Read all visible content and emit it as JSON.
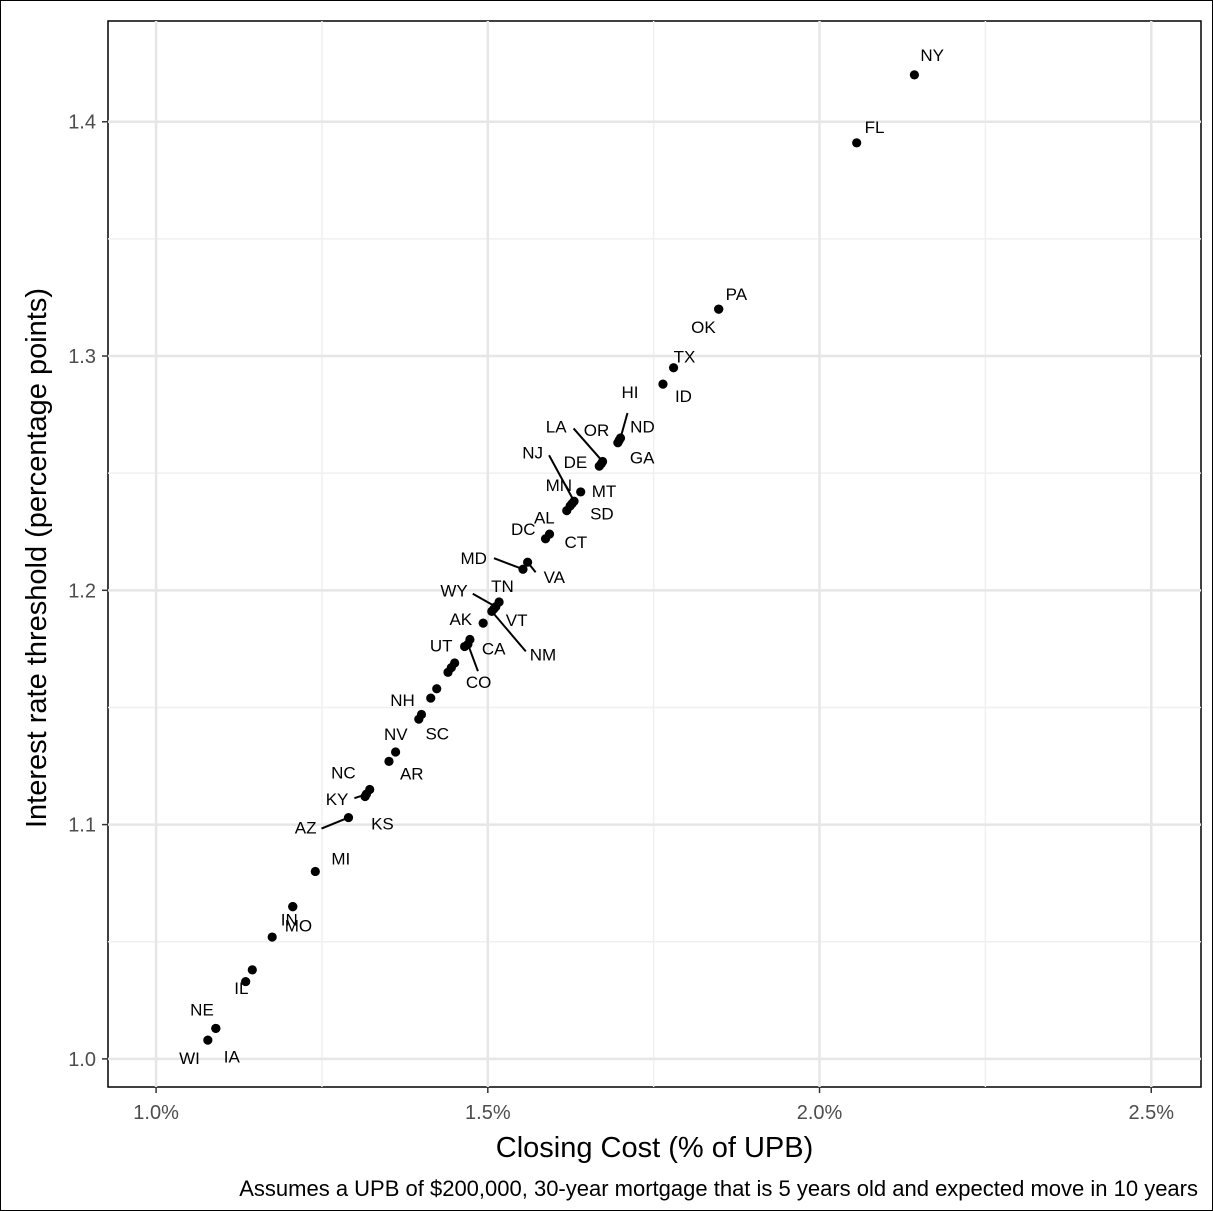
{
  "chart_data": {
    "type": "scatter",
    "title": "",
    "xlabel": "Closing Cost (% of UPB)",
    "ylabel": "Interest rate threshold (percentage points)",
    "caption": "Assumes a UPB of $200,000, 30-year mortgage that is 5 years old and expected move in 10 years",
    "xlim": [
      0.9275,
      2.575
    ],
    "ylim": [
      0.988,
      1.443
    ],
    "x_ticks": [
      1.0,
      1.5,
      2.0,
      2.5
    ],
    "x_tick_labels": [
      "1.0%",
      "1.5%",
      "2.0%",
      "2.5%"
    ],
    "y_ticks": [
      1.0,
      1.1,
      1.2,
      1.3,
      1.4
    ],
    "y_tick_labels": [
      "1.0",
      "1.1",
      "1.2",
      "1.3",
      "1.4"
    ],
    "grid": true,
    "legend": "none",
    "point_color": "#000000",
    "points": [
      {
        "label": "NY",
        "x": 2.143,
        "y": 1.42
      },
      {
        "label": "FL",
        "x": 2.056,
        "y": 1.391
      },
      {
        "label": "PA",
        "x": 1.848,
        "y": 1.32
      },
      {
        "label": "OK",
        "x": 1.848,
        "y": 1.32
      },
      {
        "label": "TX",
        "x": 1.78,
        "y": 1.295
      },
      {
        "label": "ID",
        "x": 1.764,
        "y": 1.288
      },
      {
        "label": "HI",
        "x": 1.7,
        "y": 1.265
      },
      {
        "label": "ND",
        "x": 1.698,
        "y": 1.264
      },
      {
        "label": "GA",
        "x": 1.696,
        "y": 1.263
      },
      {
        "label": "LA",
        "x": 1.673,
        "y": 1.255
      },
      {
        "label": "OR",
        "x": 1.671,
        "y": 1.254
      },
      {
        "label": "DE",
        "x": 1.668,
        "y": 1.253
      },
      {
        "label": "MT",
        "x": 1.64,
        "y": 1.242
      },
      {
        "label": "NJ",
        "x": 1.63,
        "y": 1.238
      },
      {
        "label": "MN",
        "x": 1.624,
        "y": 1.236
      },
      {
        "label": "SD",
        "x": 1.627,
        "y": 1.237
      },
      {
        "label": "AL",
        "x": 1.619,
        "y": 1.234
      },
      {
        "label": "CT",
        "x": 1.593,
        "y": 1.224
      },
      {
        "label": "DC",
        "x": 1.587,
        "y": 1.222
      },
      {
        "label": "VA",
        "x": 1.56,
        "y": 1.212
      },
      {
        "label": "MD",
        "x": 1.553,
        "y": 1.209
      },
      {
        "label": "TN",
        "x": 1.517,
        "y": 1.195
      },
      {
        "label": "WY",
        "x": 1.512,
        "y": 1.193
      },
      {
        "label": "VT",
        "x": 1.509,
        "y": 1.192
      },
      {
        "label": "NM",
        "x": 1.506,
        "y": 1.191
      },
      {
        "label": "AK",
        "x": 1.493,
        "y": 1.186
      },
      {
        "label": "CA",
        "x": 1.473,
        "y": 1.179
      },
      {
        "label": "UT",
        "x": 1.465,
        "y": 1.176
      },
      {
        "label": "CO",
        "x": 1.47,
        "y": 1.177
      },
      {
        "label": "",
        "x": 1.45,
        "y": 1.169
      },
      {
        "label": "",
        "x": 1.445,
        "y": 1.167
      },
      {
        "label": "",
        "x": 1.44,
        "y": 1.165
      },
      {
        "label": "",
        "x": 1.423,
        "y": 1.158
      },
      {
        "label": "NH",
        "x": 1.414,
        "y": 1.154
      },
      {
        "label": "SC",
        "x": 1.4,
        "y": 1.147
      },
      {
        "label": "",
        "x": 1.396,
        "y": 1.145
      },
      {
        "label": "NV",
        "x": 1.361,
        "y": 1.131
      },
      {
        "label": "AR",
        "x": 1.351,
        "y": 1.127
      },
      {
        "label": "NC",
        "x": 1.322,
        "y": 1.115
      },
      {
        "label": "KS",
        "x": 1.315,
        "y": 1.112
      },
      {
        "label": "KY",
        "x": 1.317,
        "y": 1.113
      },
      {
        "label": "AZ",
        "x": 1.29,
        "y": 1.103
      },
      {
        "label": "MI",
        "x": 1.24,
        "y": 1.08
      },
      {
        "label": "IN",
        "x": 1.206,
        "y": 1.065
      },
      {
        "label": "MO",
        "x": 1.206,
        "y": 1.065
      },
      {
        "label": "",
        "x": 1.175,
        "y": 1.052
      },
      {
        "label": "IL",
        "x": 1.145,
        "y": 1.038
      },
      {
        "label": "",
        "x": 1.135,
        "y": 1.033
      },
      {
        "label": "NE",
        "x": 1.09,
        "y": 1.013
      },
      {
        "label": "IA",
        "x": 1.09,
        "y": 1.013
      },
      {
        "label": "WI",
        "x": 1.078,
        "y": 1.008
      }
    ]
  }
}
